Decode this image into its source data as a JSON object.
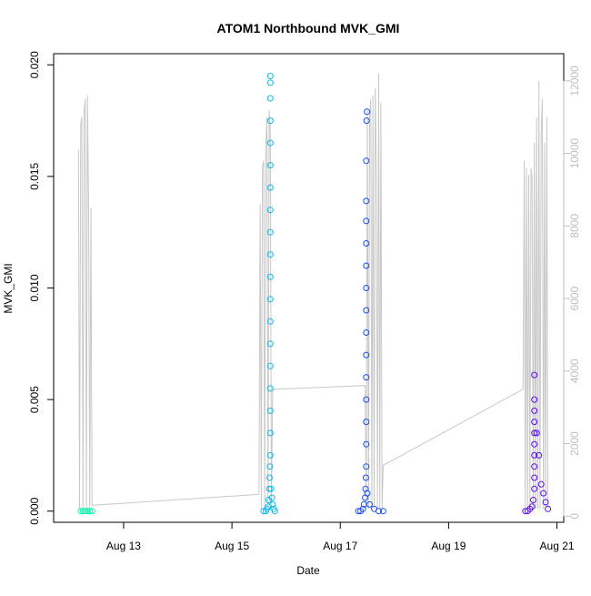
{
  "chart_data": {
    "type": "scatter",
    "title": "ATOM1 Northbound MVK_GMI",
    "xlabel": "Date",
    "ylabel": "MVK_GMI",
    "x_unit": "date",
    "xlim": [
      "2021-08-11T17:00",
      "2021-08-21T03:00"
    ],
    "ylim": [
      -0.0005,
      0.0205
    ],
    "y2lim": [
      -170,
      12750
    ],
    "x_ticks": [
      {
        "value": "2021-08-13T00:00",
        "label": "Aug 13"
      },
      {
        "value": "2021-08-15T00:00",
        "label": "Aug 15"
      },
      {
        "value": "2021-08-17T00:00",
        "label": "Aug 17"
      },
      {
        "value": "2021-08-19T00:00",
        "label": "Aug 19"
      },
      {
        "value": "2021-08-21T00:00",
        "label": "Aug 21"
      }
    ],
    "y_ticks": [
      {
        "value": 0.0,
        "label": "0.000"
      },
      {
        "value": 0.005,
        "label": "0.005"
      },
      {
        "value": 0.01,
        "label": "0.010"
      },
      {
        "value": 0.015,
        "label": "0.015"
      },
      {
        "value": 0.02,
        "label": "0.020"
      }
    ],
    "y2_ticks": [
      {
        "value": 0,
        "label": "0"
      },
      {
        "value": 2000,
        "label": "2000"
      },
      {
        "value": 4000,
        "label": "4000"
      },
      {
        "value": 6000,
        "label": "6000"
      },
      {
        "value": 8000,
        "label": "8000"
      },
      {
        "value": 10000,
        "label": "10000"
      },
      {
        "value": 12000,
        "label": "12000"
      }
    ],
    "grid": false,
    "legend": "none",
    "series": [
      {
        "color": "#00f5a8",
        "x": [
          "2021-08-12T05:00",
          "2021-08-12T06:00",
          "2021-08-12T07:00",
          "2021-08-12T08:00",
          "2021-08-12T09:00",
          "2021-08-12T10:00"
        ],
        "y": [
          0.0,
          0.0,
          0.0,
          0.0,
          0.0,
          0.0
        ]
      },
      {
        "color": "#10b8ec",
        "x": [
          "2021-08-15T14:00",
          "2021-08-15T15:00",
          "2021-08-15T15:30",
          "2021-08-15T16:00",
          "2021-08-15T16:15",
          "2021-08-15T16:30",
          "2021-08-15T16:40",
          "2021-08-15T16:50",
          "2021-08-15T17:00",
          "2021-08-15T17:00",
          "2021-08-15T17:00",
          "2021-08-15T17:00",
          "2021-08-15T17:00",
          "2021-08-15T17:00",
          "2021-08-15T17:00",
          "2021-08-15T17:00",
          "2021-08-15T17:00",
          "2021-08-15T17:00",
          "2021-08-15T17:00",
          "2021-08-15T17:00",
          "2021-08-15T17:00",
          "2021-08-15T17:00",
          "2021-08-15T17:00",
          "2021-08-15T17:00",
          "2021-08-15T17:00",
          "2021-08-15T17:00",
          "2021-08-15T17:00",
          "2021-08-15T17:20",
          "2021-08-15T17:40",
          "2021-08-15T18:00",
          "2021-08-15T18:30",
          "2021-08-15T19:00"
        ],
        "y": [
          0.0,
          0.0,
          0.0001,
          0.0002,
          0.0005,
          0.001,
          0.0015,
          0.002,
          0.0025,
          0.0035,
          0.0045,
          0.0055,
          0.0065,
          0.0075,
          0.0085,
          0.0095,
          0.0105,
          0.0115,
          0.0125,
          0.0135,
          0.0145,
          0.0155,
          0.0165,
          0.0175,
          0.0185,
          0.0192,
          0.0195,
          0.001,
          0.0006,
          0.0003,
          0.0001,
          0.0
        ]
      },
      {
        "color": "#1a4ef0",
        "x": [
          "2021-08-17T08:00",
          "2021-08-17T09:00",
          "2021-08-17T10:00",
          "2021-08-17T10:30",
          "2021-08-17T11:00",
          "2021-08-17T11:10",
          "2021-08-17T11:20",
          "2021-08-17T11:30",
          "2021-08-17T11:30",
          "2021-08-17T11:30",
          "2021-08-17T11:30",
          "2021-08-17T11:30",
          "2021-08-17T11:30",
          "2021-08-17T11:30",
          "2021-08-17T11:30",
          "2021-08-17T11:30",
          "2021-08-17T11:30",
          "2021-08-17T11:30",
          "2021-08-17T11:30",
          "2021-08-17T11:30",
          "2021-08-17T11:30",
          "2021-08-17T11:40",
          "2021-08-17T11:50",
          "2021-08-17T12:00",
          "2021-08-17T13:00",
          "2021-08-17T15:00",
          "2021-08-17T17:00",
          "2021-08-17T19:00"
        ],
        "y": [
          0.0,
          0.0,
          0.0001,
          0.0003,
          0.0006,
          0.001,
          0.0015,
          0.002,
          0.003,
          0.004,
          0.005,
          0.006,
          0.007,
          0.008,
          0.009,
          0.01,
          0.011,
          0.012,
          0.013,
          0.0139,
          0.0157,
          0.0175,
          0.0179,
          0.0008,
          0.0003,
          0.0001,
          0.0,
          0.0
        ]
      },
      {
        "color": "#5a10f2",
        "x": [
          "2021-08-20T10:00",
          "2021-08-20T11:00",
          "2021-08-20T12:00",
          "2021-08-20T13:00",
          "2021-08-20T13:30",
          "2021-08-20T14:00",
          "2021-08-20T14:00",
          "2021-08-20T14:00",
          "2021-08-20T14:00",
          "2021-08-20T14:00",
          "2021-08-20T14:00",
          "2021-08-20T14:00",
          "2021-08-20T14:00",
          "2021-08-20T14:00",
          "2021-08-20T14:00",
          "2021-08-20T15:00",
          "2021-08-20T16:00",
          "2021-08-20T17:00",
          "2021-08-20T18:00",
          "2021-08-20T19:00",
          "2021-08-20T20:00"
        ],
        "y": [
          0.0,
          0.0,
          0.0001,
          0.0002,
          0.0005,
          0.001,
          0.0015,
          0.002,
          0.0025,
          0.003,
          0.0035,
          0.004,
          0.0045,
          0.005,
          0.0061,
          0.0035,
          0.0025,
          0.0012,
          0.0008,
          0.0004,
          0.0001
        ]
      }
    ],
    "secondary_series": {
      "color": "#c8c8c8",
      "axis": "right",
      "x": [
        "2021-08-12T04:00",
        "2021-08-12T04:30",
        "2021-08-12T05:00",
        "2021-08-12T05:30",
        "2021-08-12T06:00",
        "2021-08-12T06:30",
        "2021-08-12T07:00",
        "2021-08-12T07:30",
        "2021-08-12T08:00",
        "2021-08-12T08:30",
        "2021-08-12T09:00",
        "2021-08-12T09:30",
        "2021-08-12T10:00",
        "2021-08-15T12:00",
        "2021-08-15T12:30",
        "2021-08-15T13:00",
        "2021-08-15T13:30",
        "2021-08-15T14:00",
        "2021-08-15T14:30",
        "2021-08-15T15:00",
        "2021-08-15T15:30",
        "2021-08-15T16:00",
        "2021-08-15T16:30",
        "2021-08-15T17:00",
        "2021-08-15T17:30",
        "2021-08-15T18:00",
        "2021-08-15T18:30",
        "2021-08-15T19:00",
        "2021-08-17T11:00",
        "2021-08-17T11:30",
        "2021-08-17T12:00",
        "2021-08-17T12:30",
        "2021-08-17T13:00",
        "2021-08-17T13:30",
        "2021-08-17T14:00",
        "2021-08-17T14:30",
        "2021-08-17T15:00",
        "2021-08-17T15:30",
        "2021-08-17T16:00",
        "2021-08-17T16:30",
        "2021-08-17T17:00",
        "2021-08-17T17:30",
        "2021-08-17T18:00",
        "2021-08-17T18:30",
        "2021-08-17T19:00",
        "2021-08-20T09:00",
        "2021-08-20T09:30",
        "2021-08-20T10:00",
        "2021-08-20T10:30",
        "2021-08-20T11:00",
        "2021-08-20T11:30",
        "2021-08-20T12:00",
        "2021-08-20T12:30",
        "2021-08-20T13:00",
        "2021-08-20T13:30",
        "2021-08-20T14:00",
        "2021-08-20T14:30",
        "2021-08-20T15:00",
        "2021-08-20T15:30",
        "2021-08-20T16:00",
        "2021-08-20T16:30",
        "2021-08-20T17:00",
        "2021-08-20T17:30",
        "2021-08-20T18:00",
        "2021-08-20T18:30",
        "2021-08-20T19:00",
        "2021-08-20T19:30",
        "2021-08-20T20:00"
      ],
      "y": [
        10100,
        200,
        10800,
        11000,
        200,
        11200,
        11500,
        200,
        11600,
        8400,
        200,
        8500,
        300,
        600,
        8600,
        200,
        9600,
        9800,
        200,
        10200,
        11000,
        200,
        11200,
        10600,
        200,
        3400,
        3500,
        3500,
        3600,
        200,
        11200,
        200,
        11000,
        11500,
        200,
        11600,
        200,
        11800,
        9500,
        200,
        12200,
        200,
        11400,
        200,
        1400,
        3500,
        9800,
        200,
        9600,
        200,
        9400,
        200,
        9600,
        9300,
        200,
        10300,
        200,
        11000,
        200,
        12000,
        200,
        10500,
        11500,
        200,
        10300,
        200,
        11000,
        200
      ]
    }
  }
}
